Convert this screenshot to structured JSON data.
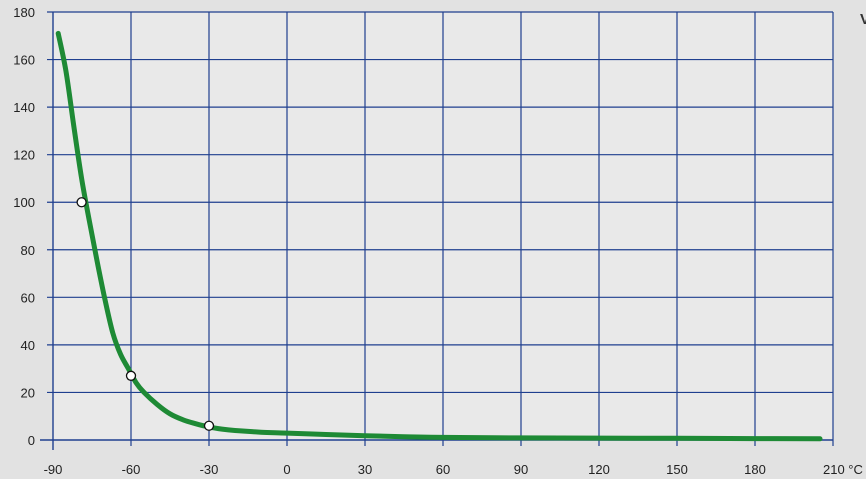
{
  "chart_data": {
    "type": "line",
    "title": "",
    "xlabel": "",
    "ylabel": "",
    "x_unit": "°C",
    "xlim": [
      -90,
      210
    ],
    "ylim": [
      0,
      180
    ],
    "x_ticks": [
      -90,
      -60,
      -30,
      0,
      30,
      60,
      90,
      120,
      150,
      180,
      210
    ],
    "y_ticks": [
      0,
      20,
      40,
      60,
      80,
      100,
      120,
      140,
      160,
      180
    ],
    "grid": true,
    "series": [
      {
        "color": "#1e8a35",
        "x": [
          -88,
          -85,
          -82,
          -79,
          -76,
          -73,
          -70,
          -67,
          -64,
          -61,
          -58,
          -55,
          -50,
          -45,
          -40,
          -35,
          -30,
          -25,
          -20,
          -10,
          0,
          15,
          30,
          45,
          60,
          90,
          120,
          150,
          180,
          205
        ],
        "y": [
          171,
          155,
          132,
          110,
          92,
          75,
          59,
          45,
          36,
          30,
          24,
          20,
          15,
          11,
          8.5,
          6.8,
          5.5,
          4.6,
          4.0,
          3.3,
          2.9,
          2.3,
          1.8,
          1.4,
          1.1,
          0.9,
          0.8,
          0.7,
          0.6,
          0.5
        ]
      }
    ],
    "markers": [
      {
        "x": -79,
        "y": 100
      },
      {
        "x": -60,
        "y": 27
      },
      {
        "x": -30,
        "y": 6
      }
    ]
  },
  "right_edge_text": "V"
}
